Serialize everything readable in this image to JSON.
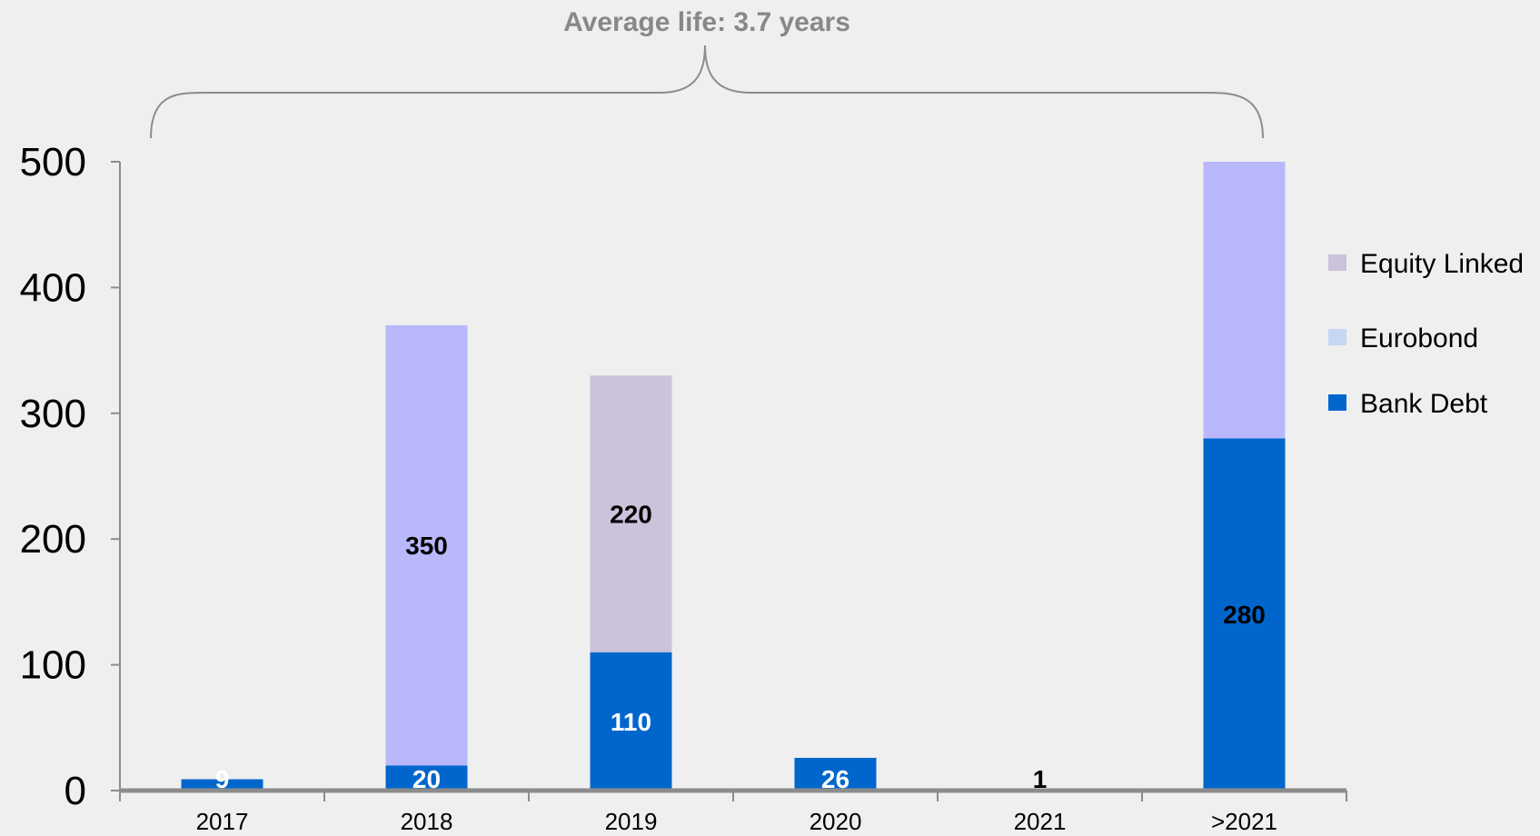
{
  "chart_data": {
    "type": "bar",
    "stacked": true,
    "categories": [
      "2017",
      "2018",
      "2019",
      "2020",
      "2021",
      ">2021"
    ],
    "series": [
      {
        "name": "Bank Debt",
        "color": "#0066cc",
        "values": [
          9,
          20,
          110,
          26,
          1,
          280
        ]
      },
      {
        "name": "Eurobond",
        "color": "#b8b8fa",
        "values": [
          0,
          350,
          0,
          0,
          0,
          220
        ]
      },
      {
        "name": "Equity Linked",
        "color": "#cbc2dc",
        "values": [
          0,
          0,
          220,
          0,
          0,
          0
        ]
      }
    ],
    "data_labels": [
      {
        "category": "2017",
        "series": "Bank Debt",
        "text": "9",
        "color": "#ffffff"
      },
      {
        "category": "2018",
        "series": "Bank Debt",
        "text": "20",
        "color": "#ffffff"
      },
      {
        "category": "2018",
        "series": "Eurobond",
        "text": "350",
        "color": "#000000"
      },
      {
        "category": "2019",
        "series": "Bank Debt",
        "text": "110",
        "color": "#ffffff"
      },
      {
        "category": "2019",
        "series": "Equity Linked",
        "text": "220",
        "color": "#000000"
      },
      {
        "category": "2020",
        "series": "Bank Debt",
        "text": "26",
        "color": "#ffffff"
      },
      {
        "category": "2021",
        "series": "Bank Debt",
        "text": "1",
        "color": "#000000"
      },
      {
        "category": ">2021",
        "series": "Bank Debt",
        "text": "280",
        "color": "#000000"
      }
    ],
    "yticks": [
      "0",
      "100",
      "200",
      "300",
      "400",
      "500"
    ],
    "ylim": [
      0,
      500
    ],
    "grid": false,
    "legend": {
      "position": "right",
      "entries": [
        {
          "label": "Equity Linked",
          "color": "#cbc2dc"
        },
        {
          "label": "Eurobond",
          "color": "#c5d7f2"
        },
        {
          "label": "Bank Debt",
          "color": "#0066cc"
        }
      ]
    },
    "annotation": "Average life: 3.7 years"
  }
}
